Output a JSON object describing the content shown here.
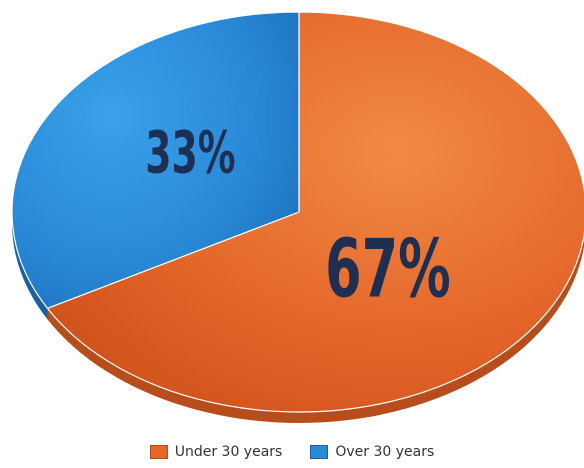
{
  "chart_data": {
    "type": "pie",
    "title": "",
    "slices": [
      {
        "label": "Under 30 years",
        "value": 67,
        "display": "67%",
        "color": "#e5672b"
      },
      {
        "label": "Over 30 years",
        "value": 33,
        "display": "33%",
        "color": "#2a8ad8"
      }
    ],
    "legend": "bottom",
    "style": "3d"
  }
}
